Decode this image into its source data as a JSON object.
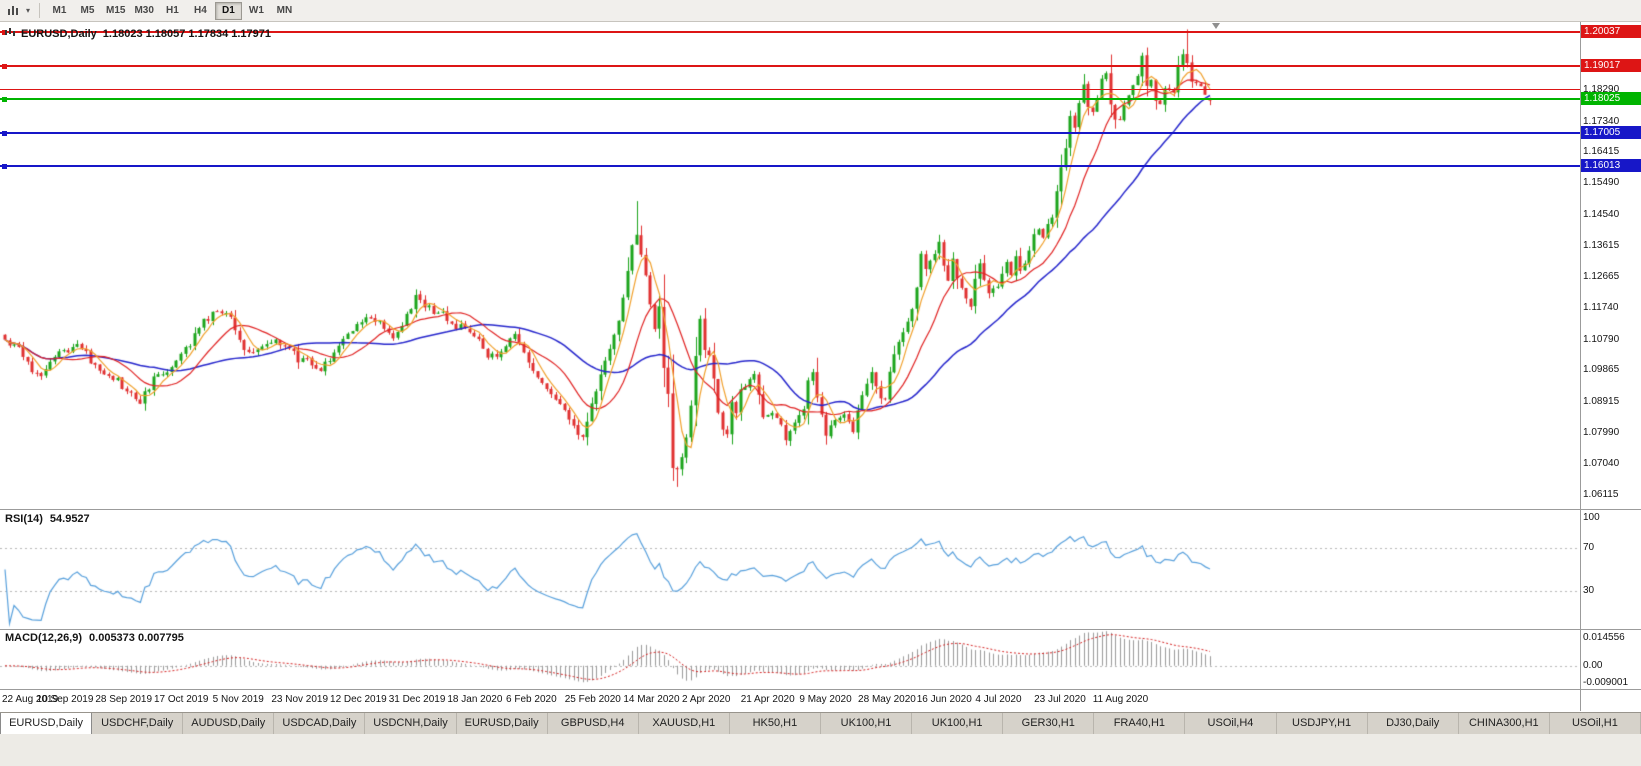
{
  "toolbar": {
    "timeframes": [
      "M1",
      "M5",
      "M15",
      "M30",
      "H1",
      "H4",
      "D1",
      "W1",
      "MN"
    ],
    "active_timeframe": "D1",
    "icons": [
      "chart-type-icon",
      "dropdown-caret-icon"
    ]
  },
  "chart_header": {
    "symbol_title": "EURUSD,Daily",
    "ohlc": "1.18023 1.18057 1.17834 1.17971"
  },
  "indicators": {
    "rsi": {
      "label": "RSI(14)",
      "value": "54.9527",
      "axis_ticks": [
        "100",
        "70",
        "30"
      ],
      "axis_values": [
        100,
        70,
        30
      ]
    },
    "macd": {
      "label": "MACD(12,26,9)",
      "values": "0.005373 0.007795",
      "axis_ticks": [
        "0.014556",
        "0.00",
        "-0.009001"
      ],
      "axis_values": [
        0.014556,
        0,
        -0.009001
      ]
    }
  },
  "levels": [
    {
      "price": 1.20037,
      "label": "1.20037",
      "color": "#dd1515",
      "badge": true
    },
    {
      "price": 1.19017,
      "label": "1.19017",
      "color": "#dd1515",
      "badge": true
    },
    {
      "price": 1.1829,
      "label": "",
      "color": "#dd1515",
      "badge": false
    },
    {
      "price": 1.18025,
      "label": "1.18025",
      "color": "#00b400",
      "badge": true
    },
    {
      "price": 1.17005,
      "label": "1.17005",
      "color": "#1717c8",
      "badge": true
    },
    {
      "price": 1.16013,
      "label": "1.16013",
      "color": "#1717c8",
      "badge": true
    }
  ],
  "tab_bar": {
    "tabs": [
      {
        "label": "EURUSD,Daily",
        "active": true
      },
      {
        "label": "USDCHF,Daily"
      },
      {
        "label": "AUDUSD,Daily"
      },
      {
        "label": "USDCAD,Daily"
      },
      {
        "label": "USDCNH,Daily"
      },
      {
        "label": "EURUSD,Daily"
      },
      {
        "label": "GBPUSD,H4"
      },
      {
        "label": "XAUUSD,H1"
      },
      {
        "label": "HK50,H1"
      },
      {
        "label": "UK100,H1"
      },
      {
        "label": "UK100,H1"
      },
      {
        "label": "GER30,H1"
      },
      {
        "label": "FRA40,H1"
      },
      {
        "label": "USOil,H4"
      },
      {
        "label": "USDJPY,H1"
      },
      {
        "label": "DJ30,Daily"
      },
      {
        "label": "CHINA300,H1"
      },
      {
        "label": "USOil,H1"
      }
    ]
  },
  "chart_data": {
    "type": "candlestick",
    "title": "EURUSD,Daily",
    "n_bars": 268,
    "x_label_every_bars": 13,
    "time_axis_labels": [
      "22 Aug 2019",
      "10 Sep 2019",
      "28 Sep 2019",
      "17 Oct 2019",
      "5 Nov 2019",
      "23 Nov 2019",
      "12 Dec 2019",
      "31 Dec 2019",
      "18 Jan 2020",
      "6 Feb 2020",
      "25 Feb 2020",
      "14 Mar 2020",
      "2 Apr 2020",
      "21 Apr 2020",
      "9 May 2020",
      "28 May 2020",
      "16 Jun 2020",
      "4 Jul 2020",
      "23 Jul 2020",
      "11 Aug 2020"
    ],
    "price_axis_ticks": [
      "1.18290",
      "1.17340",
      "1.16415",
      "1.15490",
      "1.14540",
      "1.13615",
      "1.12665",
      "1.11740",
      "1.10790",
      "1.09865",
      "1.08915",
      "1.07990",
      "1.07040",
      "1.06115"
    ],
    "price_scale": {
      "top": 1.20334,
      "bottom": 1.05695
    },
    "grid": false,
    "current_bar": {
      "open": 1.18023,
      "high": 1.18057,
      "low": 1.17834,
      "close": 1.17971
    },
    "candle_colors": {
      "up": "#1ca51c",
      "down": "#e03030"
    },
    "close_waypoints": [
      [
        0,
        1.1075
      ],
      [
        3,
        1.1062
      ],
      [
        6,
        1.0992
      ],
      [
        8,
        1.0972
      ],
      [
        11,
        1.103
      ],
      [
        13,
        1.1046
      ],
      [
        16,
        1.1068
      ],
      [
        19,
        1.1012
      ],
      [
        22,
        1.0988
      ],
      [
        25,
        1.0952
      ],
      [
        28,
        1.0906
      ],
      [
        30,
        1.089
      ],
      [
        33,
        1.0962
      ],
      [
        36,
        1.0986
      ],
      [
        39,
        1.1026
      ],
      [
        42,
        1.1096
      ],
      [
        45,
        1.1142
      ],
      [
        48,
        1.1166
      ],
      [
        50,
        1.1146
      ],
      [
        52,
        1.1076
      ],
      [
        55,
        1.1036
      ],
      [
        58,
        1.1056
      ],
      [
        60,
        1.1076
      ],
      [
        63,
        1.1062
      ],
      [
        65,
        1.1016
      ],
      [
        68,
        1.1006
      ],
      [
        70,
        1.0986
      ],
      [
        73,
        1.1052
      ],
      [
        76,
        1.1086
      ],
      [
        78,
        1.113
      ],
      [
        81,
        1.1136
      ],
      [
        84,
        1.1112
      ],
      [
        86,
        1.1086
      ],
      [
        88,
        1.1116
      ],
      [
        91,
        1.121
      ],
      [
        93,
        1.1176
      ],
      [
        96,
        1.1162
      ],
      [
        99,
        1.1126
      ],
      [
        102,
        1.1106
      ],
      [
        104,
        1.109
      ],
      [
        107,
        1.1036
      ],
      [
        109,
        1.1026
      ],
      [
        111,
        1.1062
      ],
      [
        113,
        1.1096
      ],
      [
        115,
        1.1036
      ],
      [
        117,
        1.0982
      ],
      [
        119,
        1.0946
      ],
      [
        121,
        1.0916
      ],
      [
        123,
        1.0882
      ],
      [
        125,
        1.0842
      ],
      [
        127,
        1.0796
      ],
      [
        128,
        1.0786
      ],
      [
        130,
        1.0882
      ],
      [
        132,
        1.0972
      ],
      [
        134,
        1.1052
      ],
      [
        136,
        1.1136
      ],
      [
        138,
        1.1282
      ],
      [
        139,
        1.1362
      ],
      [
        140,
        1.1395
      ],
      [
        141,
        1.1334
      ],
      [
        142,
        1.1271
      ],
      [
        143,
        1.1185
      ],
      [
        144,
        1.111
      ],
      [
        145,
        1.118
      ],
      [
        146,
        1.0995
      ],
      [
        147,
        1.0915
      ],
      [
        148,
        1.0692
      ],
      [
        149,
        1.069
      ],
      [
        150,
        1.0725
      ],
      [
        151,
        1.0785
      ],
      [
        152,
        1.0881
      ],
      [
        153,
        1.103
      ],
      [
        154,
        1.114
      ],
      [
        155,
        1.1047
      ],
      [
        156,
        1.1031
      ],
      [
        157,
        1.0963
      ],
      [
        158,
        1.0858
      ],
      [
        159,
        1.0808
      ],
      [
        160,
        1.0793
      ],
      [
        161,
        1.089
      ],
      [
        162,
        1.0858
      ],
      [
        163,
        1.093
      ],
      [
        164,
        1.0935
      ],
      [
        166,
        1.098
      ],
      [
        168,
        1.084
      ],
      [
        170,
        1.0862
      ],
      [
        172,
        1.0822
      ],
      [
        173,
        1.0777
      ],
      [
        175,
        1.083
      ],
      [
        177,
        1.0875
      ],
      [
        178,
        1.0955
      ],
      [
        179,
        1.098
      ],
      [
        180,
        1.0905
      ],
      [
        182,
        1.0795
      ],
      [
        184,
        1.084
      ],
      [
        186,
        1.0848
      ],
      [
        188,
        1.0805
      ],
      [
        190,
        1.0915
      ],
      [
        192,
        1.098
      ],
      [
        194,
        1.09
      ],
      [
        195,
        1.0898
      ],
      [
        196,
        1.0983
      ],
      [
        198,
        1.1076
      ],
      [
        199,
        1.1102
      ],
      [
        200,
        1.1134
      ],
      [
        201,
        1.117
      ],
      [
        202,
        1.1234
      ],
      [
        203,
        1.1337
      ],
      [
        204,
        1.129
      ],
      [
        206,
        1.134
      ],
      [
        207,
        1.1373
      ],
      [
        208,
        1.13
      ],
      [
        209,
        1.1256
      ],
      [
        210,
        1.1323
      ],
      [
        211,
        1.1264
      ],
      [
        213,
        1.1205
      ],
      [
        214,
        1.1177
      ],
      [
        215,
        1.1261
      ],
      [
        216,
        1.1308
      ],
      [
        218,
        1.1219
      ],
      [
        220,
        1.1242
      ],
      [
        222,
        1.1309
      ],
      [
        223,
        1.1274
      ],
      [
        224,
        1.1329
      ],
      [
        225,
        1.1284
      ],
      [
        227,
        1.1341
      ],
      [
        228,
        1.1397
      ],
      [
        229,
        1.141
      ],
      [
        230,
        1.1384
      ],
      [
        231,
        1.1427
      ],
      [
        232,
        1.1446
      ],
      [
        233,
        1.1525
      ],
      [
        234,
        1.1598
      ],
      [
        235,
        1.1655
      ],
      [
        236,
        1.175
      ],
      [
        237,
        1.1716
      ],
      [
        238,
        1.179
      ],
      [
        239,
        1.1847
      ],
      [
        240,
        1.1778
      ],
      [
        241,
        1.1762
      ],
      [
        242,
        1.1803
      ],
      [
        243,
        1.1862
      ],
      [
        244,
        1.1878
      ],
      [
        245,
        1.1787
      ],
      [
        246,
        1.1739
      ],
      [
        247,
        1.174
      ],
      [
        248,
        1.1784
      ],
      [
        249,
        1.1813
      ],
      [
        250,
        1.1842
      ],
      [
        251,
        1.1871
      ],
      [
        252,
        1.1933
      ],
      [
        253,
        1.184
      ],
      [
        254,
        1.1859
      ],
      [
        255,
        1.1796
      ],
      [
        256,
        1.1787
      ],
      [
        257,
        1.1833
      ],
      [
        258,
        1.183
      ],
      [
        259,
        1.182
      ],
      [
        260,
        1.1903
      ],
      [
        261,
        1.1936
      ],
      [
        262,
        1.1911
      ],
      [
        263,
        1.1854
      ],
      [
        264,
        1.185
      ],
      [
        265,
        1.184
      ],
      [
        266,
        1.1815
      ],
      [
        267,
        1.17971
      ]
    ],
    "bar_overrides": {
      "140": {
        "h": 1.1495
      },
      "148": {
        "l": 1.0654
      },
      "149": {
        "l": 1.0636
      },
      "262": {
        "h": 1.2011
      },
      "267": {
        "o": 1.18023,
        "h": 1.18057,
        "l": 1.17834,
        "c": 1.17971
      }
    },
    "moving_averages": [
      {
        "period": 5,
        "color": "#f0a02c",
        "width": 1.2
      },
      {
        "period": 13,
        "color": "#e02222",
        "width": 1.2
      },
      {
        "period": 34,
        "color": "#2626cc",
        "width": 1.5
      }
    ],
    "rsi": {
      "period": 14,
      "scale": [
        -5,
        105
      ],
      "levels": [
        70,
        30
      ],
      "color": "#58a0dc"
    },
    "macd": {
      "fast": 12,
      "slow": 26,
      "signal": 9,
      "scale": [
        -0.009001,
        0.014556
      ],
      "histogram_color": "#9a9a9a",
      "signal_color": "#d42222"
    }
  }
}
